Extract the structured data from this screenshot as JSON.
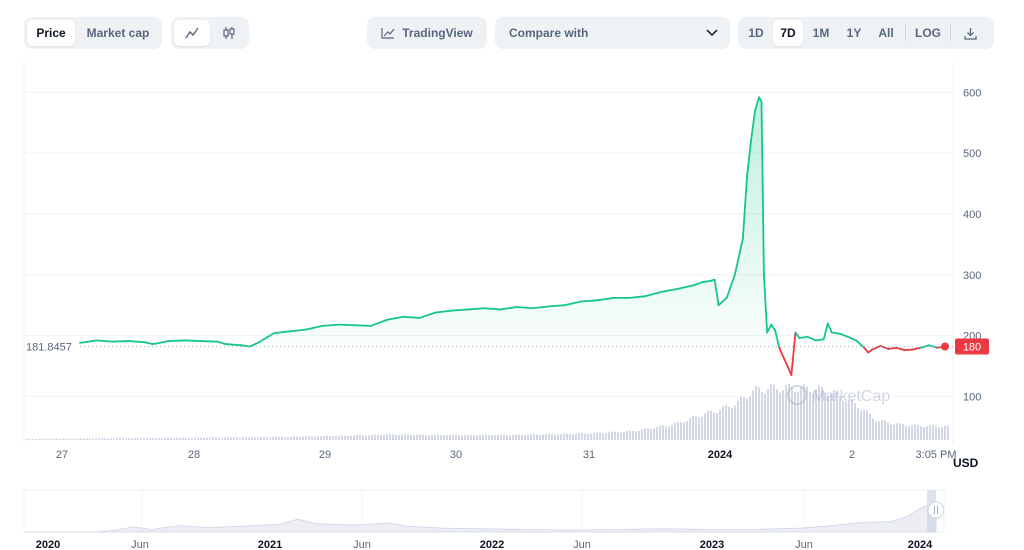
{
  "toolbar": {
    "tabs": [
      {
        "label": "Price",
        "active": true
      },
      {
        "label": "Market cap",
        "active": false
      }
    ],
    "chart_styles": [
      {
        "icon": "line-chart-icon",
        "active": true
      },
      {
        "icon": "candlestick-icon",
        "active": false
      }
    ],
    "tradingview_label": "TradingView",
    "compare_label": "Compare with",
    "ranges": [
      {
        "label": "1D",
        "active": false
      },
      {
        "label": "7D",
        "active": true
      },
      {
        "label": "1M",
        "active": false
      },
      {
        "label": "1Y",
        "active": false
      },
      {
        "label": "All",
        "active": false
      }
    ],
    "log_label": "LOG",
    "download_icon": "download-icon"
  },
  "colors": {
    "up": "#16c784",
    "down": "#ea3943",
    "volume": "#d3d7e6",
    "grid": "#eff2f5",
    "axis_text": "#58667e"
  },
  "chart_data": {
    "type": "line",
    "currency_label": "USD",
    "reference_value_label": "181.8457",
    "reference_value": 181.8457,
    "current_value_label": "180",
    "watermark": "MarketCap",
    "y_ticks": [
      "100",
      "200",
      "300",
      "400",
      "500",
      "600"
    ],
    "ylim": [
      20,
      650
    ],
    "x_ticks": [
      "27",
      "28",
      "29",
      "30",
      "31",
      "2024",
      "2",
      "3:05 PM"
    ],
    "price_series": [
      [
        0,
        188
      ],
      [
        2,
        192
      ],
      [
        4,
        190
      ],
      [
        6,
        191
      ],
      [
        8,
        189
      ],
      [
        9,
        186
      ],
      [
        11,
        191
      ],
      [
        13,
        192
      ],
      [
        15,
        191
      ],
      [
        17,
        190
      ],
      [
        18,
        186
      ],
      [
        20,
        184
      ],
      [
        21,
        182
      ],
      [
        22,
        188
      ],
      [
        24,
        204
      ],
      [
        26,
        207
      ],
      [
        28,
        210
      ],
      [
        30,
        216
      ],
      [
        32,
        218
      ],
      [
        34,
        217
      ],
      [
        36,
        216
      ],
      [
        38,
        226
      ],
      [
        40,
        231
      ],
      [
        42,
        229
      ],
      [
        44,
        238
      ],
      [
        46,
        241
      ],
      [
        48,
        243
      ],
      [
        50,
        245
      ],
      [
        52,
        243
      ],
      [
        54,
        247
      ],
      [
        56,
        245
      ],
      [
        58,
        248
      ],
      [
        60,
        250
      ],
      [
        62,
        256
      ],
      [
        64,
        258
      ],
      [
        66,
        262
      ],
      [
        68,
        262
      ],
      [
        70,
        265
      ],
      [
        72,
        272
      ],
      [
        74,
        277
      ],
      [
        76,
        283
      ],
      [
        77,
        288
      ],
      [
        78,
        290
      ],
      [
        78.5,
        292
      ],
      [
        79,
        250
      ],
      [
        80,
        262
      ],
      [
        81,
        300
      ],
      [
        82,
        360
      ],
      [
        82.5,
        460
      ],
      [
        83,
        520
      ],
      [
        83.5,
        570
      ],
      [
        84,
        592
      ],
      [
        84.3,
        585
      ],
      [
        84.6,
        300
      ],
      [
        85,
        205
      ],
      [
        85.5,
        218
      ],
      [
        86,
        208
      ],
      [
        86.5,
        180
      ],
      [
        87,
        165
      ],
      [
        87.5,
        150
      ],
      [
        88,
        135
      ],
      [
        88.5,
        205
      ],
      [
        89,
        196
      ],
      [
        90,
        198
      ],
      [
        91,
        192
      ],
      [
        92,
        194
      ],
      [
        92.5,
        220
      ],
      [
        93,
        205
      ],
      [
        94,
        203
      ],
      [
        95,
        198
      ],
      [
        96,
        192
      ],
      [
        97,
        180
      ],
      [
        97.5,
        172
      ],
      [
        98,
        177
      ],
      [
        99,
        183
      ],
      [
        100,
        178
      ],
      [
        101,
        180
      ],
      [
        102,
        176
      ],
      [
        103,
        177
      ],
      [
        104,
        180
      ],
      [
        105,
        184
      ],
      [
        106,
        180
      ],
      [
        107,
        182
      ]
    ],
    "x_max": 107,
    "volume_profile": [
      [
        0,
        0.02
      ],
      [
        20,
        0.04
      ],
      [
        30,
        0.05
      ],
      [
        40,
        0.08
      ],
      [
        45,
        0.1
      ],
      [
        50,
        0.09
      ],
      [
        60,
        0.09
      ],
      [
        70,
        0.12
      ],
      [
        75,
        0.16
      ],
      [
        80,
        0.28
      ],
      [
        82,
        0.38
      ],
      [
        84,
        0.48
      ],
      [
        86,
        0.56
      ],
      [
        88,
        0.68
      ],
      [
        89,
        0.8
      ],
      [
        90,
        0.9
      ],
      [
        92,
        0.94
      ],
      [
        95,
        0.94
      ],
      [
        98,
        0.92
      ],
      [
        100,
        0.84
      ],
      [
        103,
        0.6
      ],
      [
        105,
        0.36
      ],
      [
        107,
        0.3
      ],
      [
        108,
        0.28
      ],
      [
        110,
        0.26
      ],
      [
        114,
        0.24
      ]
    ],
    "volume_x_max": 114,
    "navigator": {
      "labels": [
        "2020",
        "Jun",
        "2021",
        "Jun",
        "2022",
        "Jun",
        "2023",
        "Jun",
        "2024"
      ],
      "bold": [
        true,
        false,
        true,
        false,
        true,
        false,
        true,
        false,
        true
      ],
      "profile": [
        [
          0,
          0.0
        ],
        [
          8,
          0.0
        ],
        [
          10,
          0.06
        ],
        [
          12,
          0.16
        ],
        [
          14,
          0.08
        ],
        [
          17,
          0.2
        ],
        [
          20,
          0.14
        ],
        [
          24,
          0.18
        ],
        [
          28,
          0.24
        ],
        [
          30,
          0.4
        ],
        [
          32,
          0.26
        ],
        [
          36,
          0.22
        ],
        [
          40,
          0.28
        ],
        [
          42,
          0.18
        ],
        [
          46,
          0.12
        ],
        [
          50,
          0.1
        ],
        [
          55,
          0.08
        ],
        [
          60,
          0.06
        ],
        [
          65,
          0.08
        ],
        [
          70,
          0.1
        ],
        [
          75,
          0.08
        ],
        [
          80,
          0.08
        ],
        [
          85,
          0.12
        ],
        [
          88,
          0.18
        ],
        [
          90,
          0.24
        ],
        [
          92,
          0.3
        ],
        [
          95,
          0.32
        ],
        [
          97,
          0.5
        ],
        [
          98,
          0.7
        ],
        [
          100,
          0.95
        ]
      ]
    }
  }
}
